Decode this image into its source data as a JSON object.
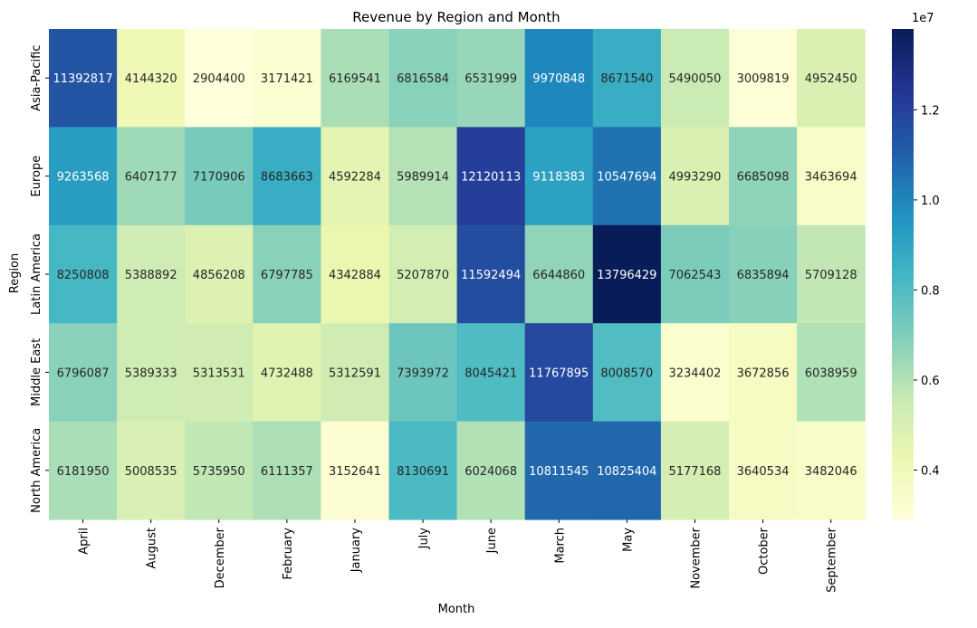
{
  "chart_data": {
    "type": "heatmap",
    "title": "Revenue by Region and Month",
    "xlabel": "Month",
    "ylabel": "Region",
    "x_categories": [
      "April",
      "August",
      "December",
      "February",
      "January",
      "July",
      "June",
      "March",
      "May",
      "November",
      "October",
      "September"
    ],
    "y_categories": [
      "Asia-Pacific",
      "Europe",
      "Latin America",
      "Middle East",
      "North America"
    ],
    "values": [
      [
        11392817,
        4144320,
        2904400,
        3171421,
        6169541,
        6816584,
        6531999,
        9970848,
        8671540,
        5490050,
        3009819,
        4952450
      ],
      [
        9263568,
        6407177,
        7170906,
        8683663,
        4592284,
        5989914,
        12120113,
        9118383,
        10547694,
        4993290,
        6685098,
        3463694
      ],
      [
        8250808,
        5388892,
        4856208,
        6797785,
        4342884,
        5207870,
        11592494,
        6644860,
        13796429,
        7062543,
        6835894,
        5709128
      ],
      [
        6796087,
        5389333,
        5313531,
        4732488,
        5312591,
        7393972,
        8045421,
        11767895,
        8008570,
        3234402,
        3672856,
        6038959
      ],
      [
        6181950,
        5008535,
        5735950,
        6111357,
        3152641,
        8130691,
        6024068,
        10811545,
        10825404,
        5177168,
        3640534,
        3482046
      ]
    ],
    "colormap": "YlGnBu",
    "color_range": [
      2904400,
      13796429
    ],
    "colorbar": {
      "offset_label": "1e7",
      "ticks": [
        0.4,
        0.6,
        0.8,
        1.0,
        1.2
      ],
      "tick_labels": [
        "0.4",
        "0.6",
        "0.8",
        "1.0",
        "1.2"
      ]
    },
    "annotations": true,
    "grid": false,
    "legend": "colorbar-right"
  }
}
